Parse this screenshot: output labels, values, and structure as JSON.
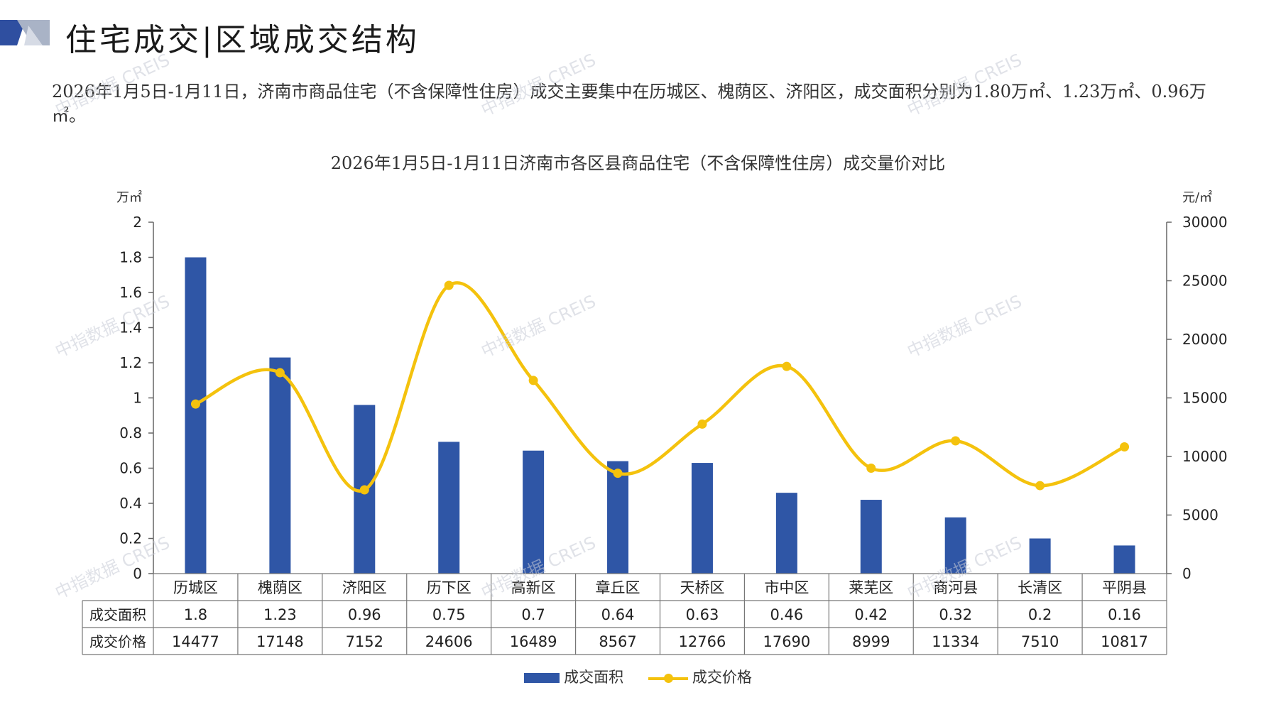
{
  "header": {
    "title": "住宅成交|区域成交结构"
  },
  "description": "2026年1月5日-1月11日，济南市商品住宅（不含保障性住房）成交主要集中在历城区、槐荫区、济阳区，成交面积分别为1.80万㎡、1.23万㎡、0.96万㎡。",
  "watermark": "中指数据 CREIS",
  "colors": {
    "bar": "#2f56a6",
    "line": "#f4c20d",
    "logo_dark": "#2f4fa0",
    "logo_light": "#a9b3c6"
  },
  "chart_data": {
    "type": "bar",
    "title": "2026年1月5日-1月11日济南市各区县商品住宅（不含保障性住房）成交量价对比",
    "categories": [
      "历城区",
      "槐荫区",
      "济阳区",
      "历下区",
      "高新区",
      "章丘区",
      "天桥区",
      "市中区",
      "莱芜区",
      "商河县",
      "长清区",
      "平阴县"
    ],
    "series": [
      {
        "name": "成交面积",
        "type": "bar",
        "axis": "left",
        "values": [
          1.8,
          1.23,
          0.96,
          0.75,
          0.7,
          0.64,
          0.63,
          0.46,
          0.42,
          0.32,
          0.2,
          0.16
        ],
        "table_labels": [
          "1.8",
          "1.23",
          "0.96",
          "0.75",
          "0.7",
          "0.64",
          "0.63",
          "0.46",
          "0.42",
          "0.32",
          "0.2",
          "0.16"
        ]
      },
      {
        "name": "成交价格",
        "type": "line",
        "axis": "right",
        "values": [
          14477,
          17148,
          7152,
          24606,
          16489,
          8567,
          12766,
          17690,
          8999,
          11334,
          7510,
          10817
        ],
        "table_labels": [
          "14477",
          "17148",
          "7152",
          "24606",
          "16489",
          "8567",
          "12766",
          "17690",
          "8999",
          "11334",
          "7510",
          "10817"
        ]
      }
    ],
    "y_left": {
      "unit": "万㎡",
      "ylim": [
        0,
        2
      ],
      "ticks": [
        "0",
        "0.2",
        "0.4",
        "0.6",
        "0.8",
        "1",
        "1.2",
        "1.4",
        "1.6",
        "1.8",
        "2"
      ]
    },
    "y_right": {
      "unit": "元/㎡",
      "ylim": [
        0,
        30000
      ],
      "ticks": [
        "0",
        "5000",
        "10000",
        "15000",
        "20000",
        "25000",
        "30000"
      ]
    },
    "data_table": true,
    "legend_position": "bottom"
  }
}
